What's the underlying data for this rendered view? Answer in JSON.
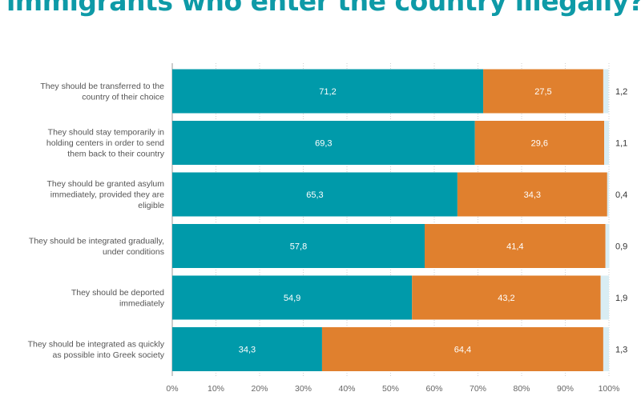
{
  "title": "immigrants who enter the country illegally?",
  "chart_data": {
    "type": "bar",
    "orientation": "horizontal",
    "stacked": true,
    "categories": [
      [
        "They should be transferred to the",
        "country of their choice"
      ],
      [
        "They should stay temporarily in",
        "holding centers in order to send",
        "them back to their country"
      ],
      [
        "They should be granted asylum",
        "immediately, provided they are",
        "eligible"
      ],
      [
        "They should be integrated gradually,",
        "under conditions"
      ],
      [
        "They should be deported",
        "immediately"
      ],
      [
        "They should be integrated as quickly",
        "as possible into Greek society"
      ]
    ],
    "series": [
      {
        "values": [
          71.2,
          69.3,
          65.3,
          57.8,
          54.9,
          34.3
        ],
        "labels": [
          "71,2",
          "69,3",
          "65,3",
          "57,8",
          "54,9",
          "34,3"
        ],
        "color": "#009aaa"
      },
      {
        "values": [
          27.5,
          29.6,
          34.3,
          41.4,
          43.2,
          64.4
        ],
        "labels": [
          "27,5",
          "29,6",
          "34,3",
          "41,4",
          "43,2",
          "64,4"
        ],
        "color": "#e0802e"
      },
      {
        "values": [
          1.2,
          1.1,
          0.4,
          0.9,
          1.9,
          1.3
        ],
        "labels": [
          "1,2",
          "1,1",
          "0,4",
          "0,9",
          "1,9",
          "1,3"
        ],
        "color": "#d9edf3"
      }
    ],
    "xlim": [
      0,
      100
    ],
    "xticks": [
      "0%",
      "10%",
      "20%",
      "30%",
      "40%",
      "50%",
      "60%",
      "70%",
      "80%",
      "90%",
      "100%"
    ],
    "grid": true,
    "legend": "none"
  }
}
